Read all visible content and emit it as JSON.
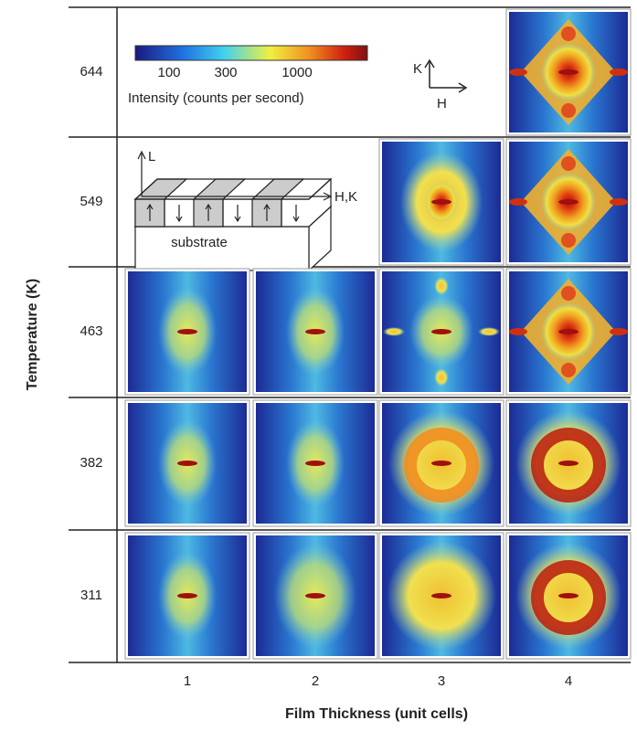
{
  "figure": {
    "y_axis_label": "Temperature (K)",
    "x_axis_label": "Film Thickness (unit cells)",
    "rows": [
      "644",
      "549",
      "463",
      "382",
      "311"
    ],
    "columns": [
      "1",
      "2",
      "3",
      "4"
    ],
    "colorbar": {
      "ticks": [
        "100",
        "300",
        "1000"
      ],
      "label": "Intensity (counts per second)"
    },
    "axes_inset": {
      "vertical": "K",
      "horizontal": "H"
    },
    "film_diagram": {
      "vertical": "L",
      "horizontal": "H,K",
      "base": "substrate"
    }
  }
}
